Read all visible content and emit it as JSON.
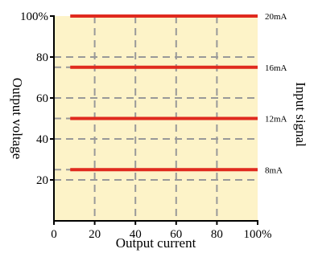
{
  "chart_data": {
    "type": "line",
    "xlabel": "Output current",
    "ylabel": "Output voltage",
    "y2label": "Input signal",
    "xlim": [
      0,
      100
    ],
    "ylim": [
      0,
      100
    ],
    "x_tick_labels": [
      "0",
      "20",
      "40",
      "60",
      "80",
      "100%"
    ],
    "y_tick_labels": [
      "20",
      "40",
      "60",
      "80",
      "100%"
    ],
    "x_ticks": [
      0,
      20,
      40,
      60,
      80,
      100
    ],
    "y_ticks": [
      20,
      40,
      60,
      80,
      100
    ],
    "grid": true,
    "series": [
      {
        "name": "20mA",
        "x": [
          8,
          100
        ],
        "y": [
          100,
          100
        ]
      },
      {
        "name": "16mA",
        "x": [
          8,
          100
        ],
        "y": [
          75,
          75
        ]
      },
      {
        "name": "12mA",
        "x": [
          8,
          100
        ],
        "y": [
          50,
          50
        ]
      },
      {
        "name": "8mA",
        "x": [
          8,
          100
        ],
        "y": [
          25,
          25
        ]
      }
    ],
    "colors": {
      "plot_background": "#fdf3c8",
      "line": "#e02a1e",
      "grid": "#999999",
      "axis": "#000000"
    }
  }
}
